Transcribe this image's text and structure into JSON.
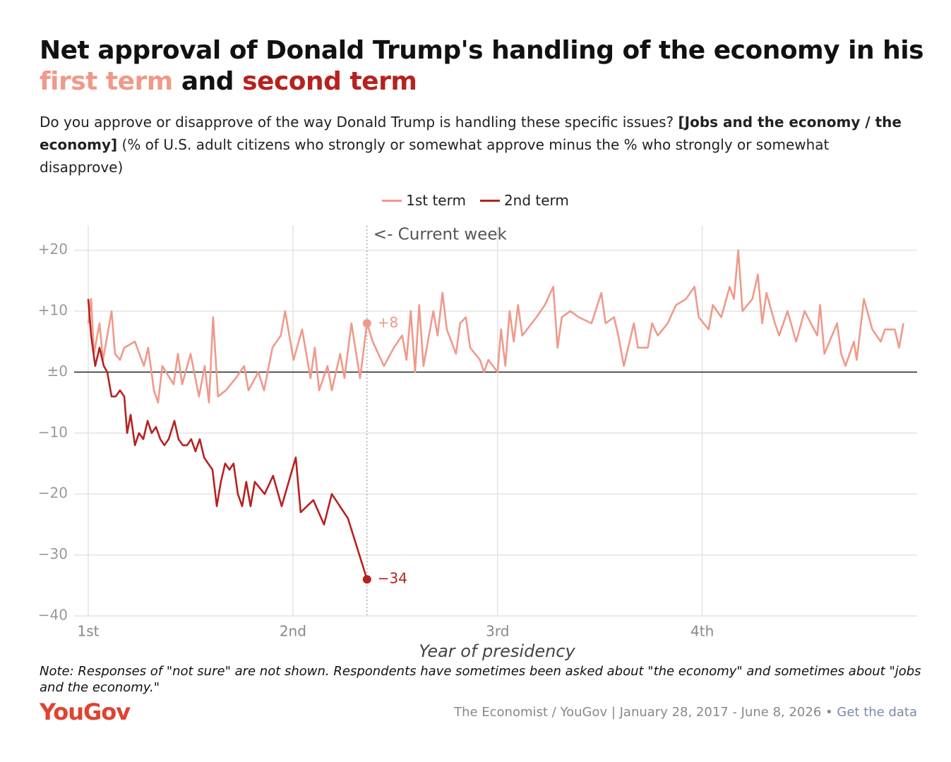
{
  "chart_data": {
    "type": "line",
    "title_parts": [
      {
        "text": "Net approval of Donald Trump's handling of the economy in his"
      },
      {
        "text": "first term",
        "color": "#f0998a"
      },
      {
        "text": "and"
      },
      {
        "text": "second term",
        "color": "#b5221f"
      }
    ],
    "subtitle_parts": [
      {
        "text": "Do you approve or disapprove of the way Donald Trump is handling these specific issues?",
        "bold": false
      },
      {
        "text": "[Jobs and the economy / the economy]",
        "bold": true
      },
      {
        "text": "(% of U.S. adult citizens who strongly or somewhat approve minus the % who strongly or somewhat disapprove)",
        "bold": false
      }
    ],
    "x_label": "Year of presidency",
    "xlim": [
      1,
      5.05
    ],
    "xticks": [
      {
        "value": 1,
        "label": "1st"
      },
      {
        "value": 2,
        "label": "2nd"
      },
      {
        "value": 3,
        "label": "3rd"
      },
      {
        "value": 4,
        "label": "4th"
      }
    ],
    "ylim": [
      -40,
      24
    ],
    "yticks": [
      {
        "value": -40,
        "label": "−40"
      },
      {
        "value": -30,
        "label": "−30"
      },
      {
        "value": -20,
        "label": "−20"
      },
      {
        "value": -10,
        "label": "−10"
      },
      {
        "value": 0,
        "label": "±0"
      },
      {
        "value": 10,
        "label": "+10"
      },
      {
        "value": 20,
        "label": "+20"
      }
    ],
    "grid": true,
    "legend": "top",
    "series": [
      {
        "name": "1st term",
        "color": "#f0998a",
        "x": [
          1.0,
          1.014,
          1.028,
          1.055,
          1.072,
          1.114,
          1.131,
          1.155,
          1.176,
          1.228,
          1.272,
          1.293,
          1.321,
          1.341,
          1.362,
          1.417,
          1.438,
          1.459,
          1.5,
          1.541,
          1.569,
          1.59,
          1.61,
          1.634,
          1.672,
          1.721,
          1.762,
          1.783,
          1.831,
          1.859,
          1.9,
          1.941,
          1.962,
          2.003,
          2.045,
          2.086,
          2.107,
          2.128,
          2.169,
          2.19,
          2.231,
          2.252,
          2.286,
          2.328,
          2.362,
          2.39,
          2.445,
          2.493,
          2.534,
          2.555,
          2.576,
          2.597,
          2.617,
          2.638,
          2.686,
          2.707,
          2.731,
          2.752,
          2.797,
          2.817,
          2.845,
          2.866,
          2.914,
          2.934,
          2.955,
          3.0,
          3.017,
          3.038,
          3.059,
          3.079,
          3.1,
          3.121,
          3.19,
          3.231,
          3.272,
          3.293,
          3.314,
          3.355,
          3.397,
          3.459,
          3.507,
          3.528,
          3.569,
          3.59,
          3.617,
          3.666,
          3.686,
          3.734,
          3.755,
          3.783,
          3.831,
          3.872,
          3.921,
          3.962,
          3.983,
          4.031,
          4.052,
          4.093,
          4.134,
          4.155,
          4.176,
          4.197,
          4.245,
          4.272,
          4.293,
          4.314,
          4.355,
          4.376,
          4.417,
          4.459,
          4.5,
          4.562,
          4.576,
          4.597,
          4.659,
          4.679,
          4.7,
          4.741,
          4.755,
          4.79,
          4.831,
          4.872,
          4.893,
          4.941,
          4.962,
          4.983
        ],
        "values": [
          8,
          12,
          3,
          8,
          2,
          10,
          3,
          2,
          4,
          5,
          1,
          4,
          -3,
          -5,
          1,
          -2,
          3,
          -2,
          3,
          -4,
          1,
          -5,
          9,
          -4,
          -3,
          -1,
          1,
          -3,
          0,
          -3,
          4,
          6,
          10,
          2,
          7,
          -1,
          4,
          -3,
          1,
          -3,
          3,
          -1,
          8,
          -1,
          8,
          5,
          1,
          4,
          6,
          2,
          10,
          0,
          11,
          1,
          10,
          6,
          13,
          7,
          3,
          8,
          9,
          4,
          2,
          0,
          2,
          0,
          7,
          1,
          10,
          5,
          11,
          6,
          9,
          11,
          14,
          4,
          9,
          10,
          9,
          8,
          13,
          8,
          9,
          6,
          1,
          8,
          4,
          4,
          8,
          6,
          8,
          11,
          12,
          14,
          9,
          7,
          11,
          9,
          14,
          12,
          20,
          10,
          12,
          16,
          8,
          13,
          8,
          6,
          10,
          5,
          10,
          6,
          11,
          3,
          8,
          3,
          1,
          5,
          2,
          12,
          7,
          5,
          7,
          7,
          4,
          8
        ]
      },
      {
        "name": "2nd term",
        "color": "#b5221f",
        "x": [
          1.0,
          1.014,
          1.034,
          1.055,
          1.076,
          1.093,
          1.114,
          1.134,
          1.155,
          1.176,
          1.19,
          1.207,
          1.228,
          1.248,
          1.269,
          1.29,
          1.31,
          1.331,
          1.352,
          1.372,
          1.393,
          1.421,
          1.441,
          1.462,
          1.483,
          1.503,
          1.524,
          1.545,
          1.566,
          1.586,
          1.607,
          1.628,
          1.648,
          1.669,
          1.69,
          1.71,
          1.731,
          1.752,
          1.772,
          1.793,
          1.814,
          1.862,
          1.903,
          1.945,
          2.014,
          2.038,
          2.1,
          2.152,
          2.19,
          2.269,
          2.362
        ],
        "values": [
          12,
          6,
          1,
          4,
          1,
          0,
          -4,
          -4,
          -3,
          -4,
          -10,
          -7,
          -12,
          -10,
          -11,
          -8,
          -10,
          -9,
          -11,
          -12,
          -11,
          -8,
          -11,
          -12,
          -12,
          -11,
          -13,
          -11,
          -14,
          -15,
          -16,
          -22,
          -18,
          -15,
          -16,
          -15,
          -20,
          -22,
          -18,
          -22,
          -18,
          -20,
          -17,
          -22,
          -14,
          -23,
          -21,
          -25,
          -20,
          -24,
          -34
        ]
      }
    ],
    "callouts": [
      {
        "x": 2.362,
        "y": 8,
        "label": "+8",
        "color": "#f0998a"
      },
      {
        "x": 2.362,
        "y": -34,
        "label": "−34",
        "color": "#b5221f"
      }
    ],
    "reference_line": {
      "x": 2.362,
      "label": "<- Current week"
    },
    "note": "Note: Responses of \"not sure\" are not shown. Respondents have sometimes been asked about \"the economy\" and sometimes about \"jobs and the economy.\"",
    "logo": "YouGov",
    "source": "The Economist / YouGov | January 28, 2017 - June 8, 2026",
    "separator": "•",
    "data_link": "Get the data"
  }
}
